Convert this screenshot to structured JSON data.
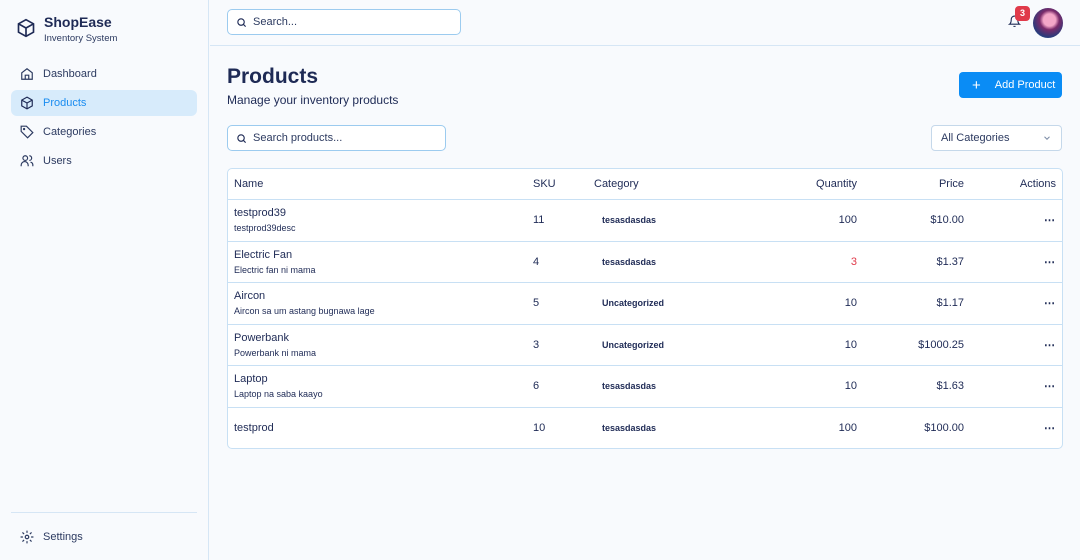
{
  "brand": {
    "name": "ShopEase",
    "subtitle": "Inventory System"
  },
  "sidebar": {
    "items": [
      {
        "label": "Dashboard",
        "icon": "home-icon"
      },
      {
        "label": "Products",
        "icon": "box-icon",
        "active": true
      },
      {
        "label": "Categories",
        "icon": "tag-icon"
      },
      {
        "label": "Users",
        "icon": "users-icon"
      }
    ],
    "settings": "Settings"
  },
  "header": {
    "search_placeholder": "Search...",
    "notification_count": "3"
  },
  "page": {
    "title": "Products",
    "subtitle": "Manage your inventory products",
    "add_button": "Add Product",
    "search_placeholder": "Search products...",
    "category_filter": "All Categories"
  },
  "table": {
    "headers": [
      "Name",
      "SKU",
      "Category",
      "Quantity",
      "Price",
      "Actions"
    ],
    "rows": [
      {
        "name": "testprod39",
        "desc": "testprod39desc",
        "sku": "11",
        "category": "tesasdasdas",
        "qty": "100",
        "price": "$10.00"
      },
      {
        "name": "Electric Fan",
        "desc": "Electric fan ni mama",
        "sku": "4",
        "category": "tesasdasdas",
        "qty": "3",
        "price": "$1.37",
        "low_stock": true
      },
      {
        "name": "Aircon",
        "desc": "Aircon sa um astang bugnawa lage",
        "sku": "5",
        "category": "Uncategorized",
        "qty": "10",
        "price": "$1.17"
      },
      {
        "name": "Powerbank",
        "desc": "Powerbank ni mama",
        "sku": "3",
        "category": "Uncategorized",
        "qty": "10",
        "price": "$1000.25"
      },
      {
        "name": "Laptop",
        "desc": "Laptop na saba kaayo",
        "sku": "6",
        "category": "tesasdasdas",
        "qty": "10",
        "price": "$1.63"
      },
      {
        "name": "testprod",
        "desc": "",
        "sku": "10",
        "category": "tesasdasdas",
        "qty": "100",
        "price": "$100.00"
      }
    ],
    "actions_label": "⋯"
  },
  "colors": {
    "accent": "#0a8cf5",
    "text": "#1e2a55",
    "danger": "#e03a4a",
    "active_bg": "#d7ebfb"
  }
}
